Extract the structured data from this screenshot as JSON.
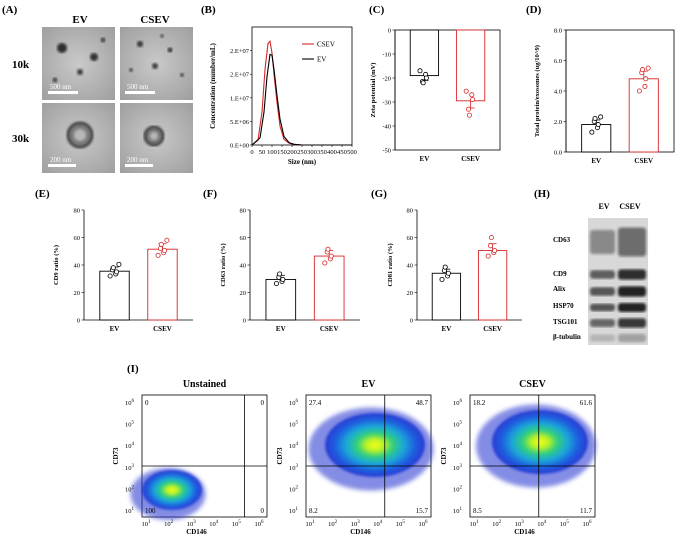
{
  "panels": {
    "A": {
      "label": "(A)",
      "col_labels": [
        "EV",
        "CSEV"
      ],
      "row_labels": [
        "10k",
        "30k"
      ],
      "scale_bars": [
        "500 nm",
        "500 nm",
        "200 nm",
        "200 nm"
      ]
    },
    "B": {
      "label": "(B)",
      "chart_data": {
        "type": "line",
        "xlabel": "Size (nm)",
        "ylabel": "Concentration (number/mL)",
        "x_ticks": [
          "0",
          "50",
          "100",
          "150",
          "200",
          "250",
          "300",
          "350",
          "400",
          "450",
          "500"
        ],
        "y_ticks": [
          "0.E+00",
          "5.E+06",
          "1.E+07",
          "2.E+07",
          "2.E+07"
        ],
        "xlim": [
          0,
          500
        ],
        "ylim": [
          0,
          25000000.0
        ],
        "series": [
          {
            "name": "CSEV",
            "color": "#d62728",
            "x": [
              0,
              30,
              50,
              65,
              80,
              90,
              100,
              110,
              125,
              140,
              160,
              185,
              210,
              250,
              500
            ],
            "y": [
              0,
              1000000,
              7000000,
              16000000,
              21500000,
              22000000,
              19500000,
              15000000,
              9000000,
              4000000,
              1200000,
              400000,
              150000,
              0,
              0
            ]
          },
          {
            "name": "EV",
            "color": "#000000",
            "x": [
              0,
              40,
              60,
              75,
              90,
              100,
              110,
              125,
              140,
              160,
              185,
              210,
              250,
              500
            ],
            "y": [
              0,
              1500000,
              7000000,
              14500000,
              19200000,
              19000000,
              16000000,
              10500000,
              5500000,
              1800000,
              500000,
              150000,
              0,
              0
            ]
          }
        ]
      }
    },
    "C": {
      "label": "(C)",
      "chart_data": {
        "type": "bar",
        "categories": [
          "EV",
          "CSEV"
        ],
        "values": [
          -19,
          -29.5
        ],
        "errors": [
          2,
          3
        ],
        "points": [
          [
            -17,
            -18.5,
            -20,
            -21.5,
            -22
          ],
          [
            -25.5,
            -27,
            -29,
            -33,
            -35.5
          ]
        ],
        "colors": [
          "#000000",
          "#d62728"
        ],
        "ylabel": "Zeta potential (mV)",
        "ylim": [
          -50,
          0
        ],
        "y_ticks": [
          "0",
          "-10",
          "-20",
          "-30",
          "-40",
          "-50"
        ]
      }
    },
    "D": {
      "label": "(D)",
      "chart_data": {
        "type": "bar",
        "categories": [
          "EV",
          "CSEV"
        ],
        "values": [
          1.8,
          4.8
        ],
        "errors": [
          0.3,
          0.5
        ],
        "points": [
          [
            1.3,
            1.6,
            1.8,
            2.0,
            2.2,
            2.3
          ],
          [
            4.0,
            4.3,
            4.8,
            5.2,
            5.4,
            5.5
          ]
        ],
        "colors": [
          "#000000",
          "#d62728"
        ],
        "ylabel": "Total protein/exosomes (ug/10^9)",
        "ylim": [
          0,
          8
        ],
        "y_ticks": [
          "0.0",
          "2.0",
          "4.0",
          "6.0",
          "8.0"
        ]
      }
    },
    "E": {
      "label": "(E)",
      "chart_data": {
        "type": "bar",
        "categories": [
          "EV",
          "CSEV"
        ],
        "values": [
          35.5,
          51.5
        ],
        "errors": [
          3,
          4
        ],
        "points": [
          [
            32,
            33.5,
            35,
            36.5,
            38,
            40.5
          ],
          [
            47,
            49,
            50.5,
            52,
            55,
            58
          ]
        ],
        "colors": [
          "#000000",
          "#d62728"
        ],
        "ylabel": "CD9 ratio (%)",
        "ylim": [
          0,
          80
        ],
        "y_ticks": [
          "0",
          "20",
          "40",
          "60",
          "80"
        ]
      }
    },
    "F": {
      "label": "(F)",
      "chart_data": {
        "type": "bar",
        "categories": [
          "EV",
          "CSEV"
        ],
        "values": [
          29.5,
          46.5
        ],
        "errors": [
          3,
          4
        ],
        "points": [
          [
            26.5,
            28,
            29.5,
            31,
            33.5
          ],
          [
            41.5,
            44.5,
            46.5,
            49.5,
            51.5
          ]
        ],
        "colors": [
          "#000000",
          "#d62728"
        ],
        "ylabel": "CD63 ratio (%)",
        "ylim": [
          0,
          80
        ],
        "y_ticks": [
          "0",
          "20",
          "40",
          "60",
          "80"
        ]
      }
    },
    "G": {
      "label": "(G)",
      "chart_data": {
        "type": "bar",
        "categories": [
          "EV",
          "CSEV"
        ],
        "values": [
          34,
          50.5
        ],
        "errors": [
          3,
          5
        ],
        "points": [
          [
            29.5,
            32,
            34,
            36,
            38.5
          ],
          [
            46.5,
            49,
            50.5,
            54,
            60
          ]
        ],
        "colors": [
          "#000000",
          "#d62728"
        ],
        "ylabel": "CD81 ratio (%)",
        "ylim": [
          0,
          80
        ],
        "y_ticks": [
          "0",
          "20",
          "40",
          "60",
          "80"
        ]
      }
    },
    "H": {
      "label": "(H)",
      "columns": [
        "EV",
        "CSEV"
      ],
      "bands": [
        "CD63",
        "CD9",
        "Alix",
        "HSP70",
        "TSG101",
        "β-tubulin"
      ]
    },
    "I": {
      "label": "(I)",
      "xlabel": "CD146",
      "ylabel": "CD73",
      "tick_base": "10",
      "tick_exps": [
        "1",
        "2",
        "3",
        "4",
        "5",
        "6"
      ],
      "plots": [
        {
          "title": "Unstained",
          "q": [
            "0",
            "0",
            "100",
            "0"
          ]
        },
        {
          "title": "EV",
          "q": [
            "27.4",
            "48.7",
            "8.2",
            "15.7"
          ]
        },
        {
          "title": "CSEV",
          "q": [
            "18.2",
            "61.6",
            "8.5",
            "11.7"
          ]
        }
      ]
    }
  }
}
